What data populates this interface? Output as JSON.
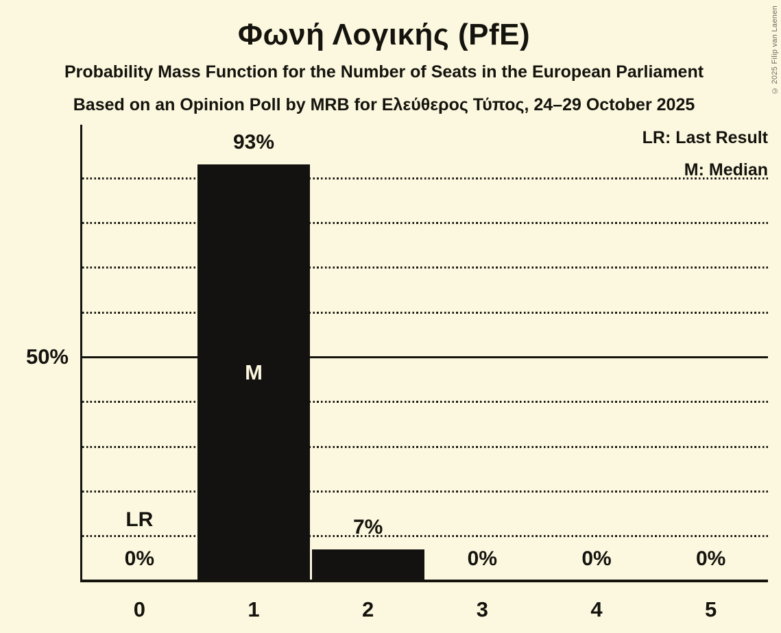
{
  "header": {
    "title": "Φωνή Λογικής (PfE)",
    "subtitle1": "Probability Mass Function for the Number of Seats in the European Parliament",
    "subtitle2": "Based on an Opinion Poll by MRB for Ελεύθερος Τύπος, 24–29 October 2025"
  },
  "legend": {
    "last_result": "LR: Last Result",
    "median": "M: Median"
  },
  "y_axis": {
    "tick_label": "50%",
    "tick_value": 50
  },
  "copyright": "© 2025 Filip van Laenen",
  "chart_data": {
    "type": "bar",
    "title": "Φωνή Λογικής (PfE)",
    "subtitle": "Probability Mass Function for the Number of Seats in the European Parliament",
    "source_note": "Based on an Opinion Poll by MRB for Ελεύθερος Τύπος, 24–29 October 2025",
    "xlabel": "",
    "ylabel": "",
    "categories": [
      "0",
      "1",
      "2",
      "3",
      "4",
      "5"
    ],
    "values": [
      0,
      93,
      7,
      0,
      0,
      0
    ],
    "value_labels": [
      "0%",
      "93%",
      "7%",
      "0%",
      "0%",
      "0%"
    ],
    "ylim": [
      0,
      102
    ],
    "gridline_percents": [
      10,
      20,
      30,
      40,
      60,
      70,
      80,
      90
    ],
    "solid_line_percent": 50,
    "median_category_index": 1,
    "median_marker_label": "M",
    "last_result_category_index": 0,
    "last_result_marker_label": "LR",
    "legend_position": "top-right",
    "grid": "dotted-horizontal",
    "colors": {
      "background": "#fcf8df",
      "bar": "#131210",
      "text": "#14130d",
      "median_text": "#fcf8df",
      "copyright_text": "#6b6a5e"
    }
  }
}
